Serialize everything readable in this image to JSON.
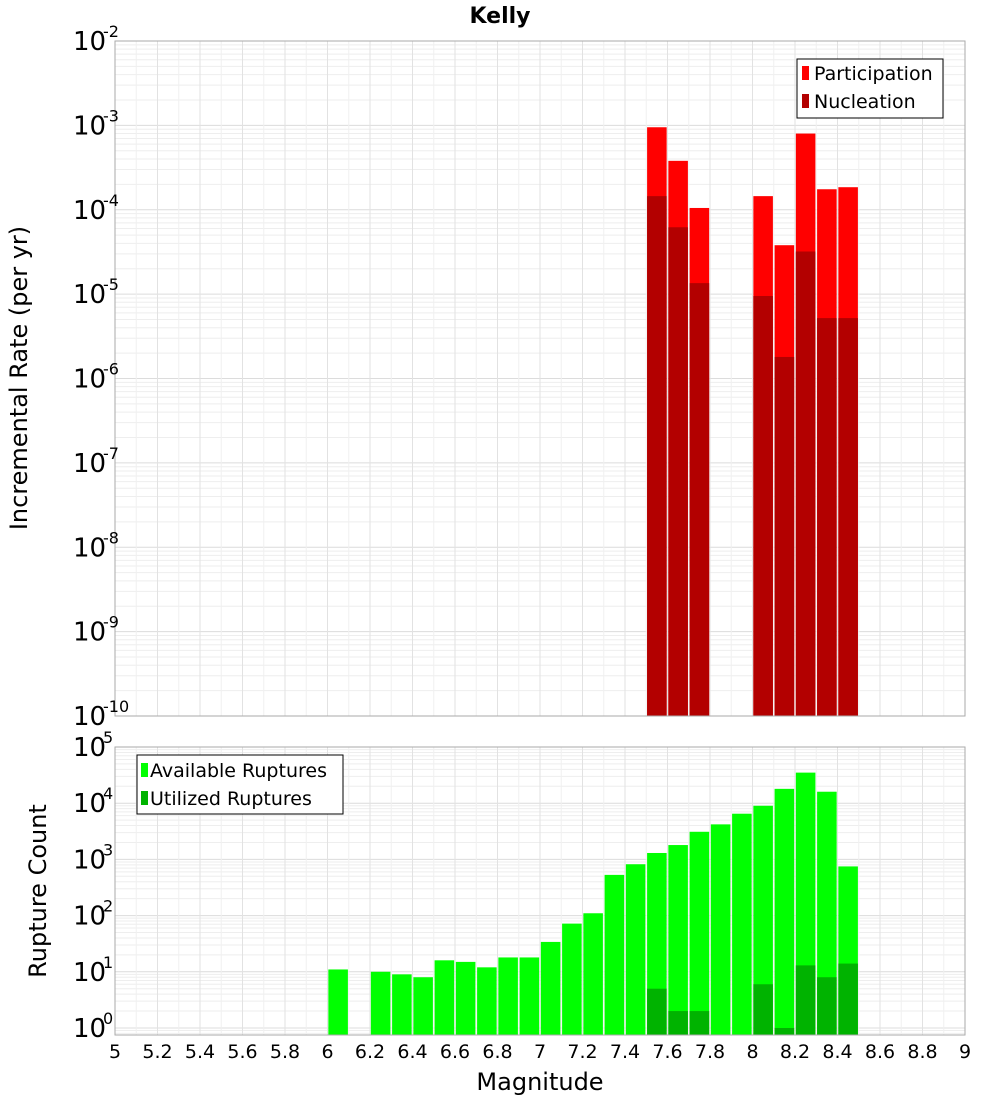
{
  "chart_data": [
    {
      "type": "bar",
      "title": "Kelly",
      "ylabel": "Incremental Rate (per yr)",
      "yscale": "log",
      "ylim": [
        1e-10,
        0.01
      ],
      "xlim": [
        5,
        9
      ],
      "y_ticks": [
        "10^-10",
        "10^-9",
        "10^-8",
        "10^-7",
        "10^-6",
        "10^-5",
        "10^-4",
        "10^-3",
        "10^-2"
      ],
      "legend": {
        "position": "top-right"
      },
      "grid": true,
      "series": [
        {
          "name": "Participation",
          "color": "#ff0000",
          "x": [
            7.55,
            7.65,
            7.75,
            8.05,
            8.15,
            8.25,
            8.35,
            8.45
          ],
          "values": [
            0.00095,
            0.00038,
            0.000105,
            0.000145,
            3.8e-05,
            0.0008,
            0.000175,
            0.000185
          ]
        },
        {
          "name": "Nucleation",
          "color": "#b30000",
          "x": [
            7.55,
            7.65,
            7.75,
            8.05,
            8.15,
            8.25,
            8.35,
            8.45
          ],
          "values": [
            0.000145,
            6.2e-05,
            1.35e-05,
            9.5e-06,
            1.8e-06,
            3.2e-05,
            5.2e-06,
            5.2e-06
          ]
        }
      ]
    },
    {
      "type": "bar",
      "xlabel": "Magnitude",
      "ylabel": "Rupture Count",
      "yscale": "log",
      "ylim": [
        0.75,
        100000
      ],
      "xlim": [
        5,
        9
      ],
      "x_ticks": [
        "5",
        "5.2",
        "5.4",
        "5.6",
        "5.8",
        "6",
        "6.2",
        "6.4",
        "6.6",
        "6.8",
        "7",
        "7.2",
        "7.4",
        "7.6",
        "7.8",
        "8",
        "8.2",
        "8.4",
        "8.6",
        "8.8",
        "9"
      ],
      "y_ticks": [
        "10^0",
        "10^1",
        "10^2",
        "10^3",
        "10^4",
        "10^5"
      ],
      "legend": {
        "position": "top-left"
      },
      "grid": true,
      "series": [
        {
          "name": "Available Ruptures",
          "color": "#00ff00",
          "x": [
            6.05,
            6.25,
            6.35,
            6.45,
            6.55,
            6.65,
            6.75,
            6.85,
            6.95,
            7.05,
            7.15,
            7.25,
            7.35,
            7.45,
            7.55,
            7.65,
            7.75,
            7.85,
            7.95,
            8.05,
            8.15,
            8.25,
            8.35,
            8.45
          ],
          "values": [
            11,
            10,
            9,
            8,
            16,
            15,
            12,
            18,
            18,
            34,
            72,
            110,
            530,
            820,
            1300,
            1800,
            3100,
            4200,
            6500,
            9000,
            18000,
            35000,
            16000,
            750
          ]
        },
        {
          "name": "Utilized Ruptures",
          "color": "#00b300",
          "x": [
            7.55,
            7.65,
            7.75,
            8.05,
            8.15,
            8.25,
            8.35,
            8.45
          ],
          "values": [
            5,
            2,
            2,
            6,
            1,
            13,
            8,
            14
          ]
        }
      ]
    }
  ]
}
